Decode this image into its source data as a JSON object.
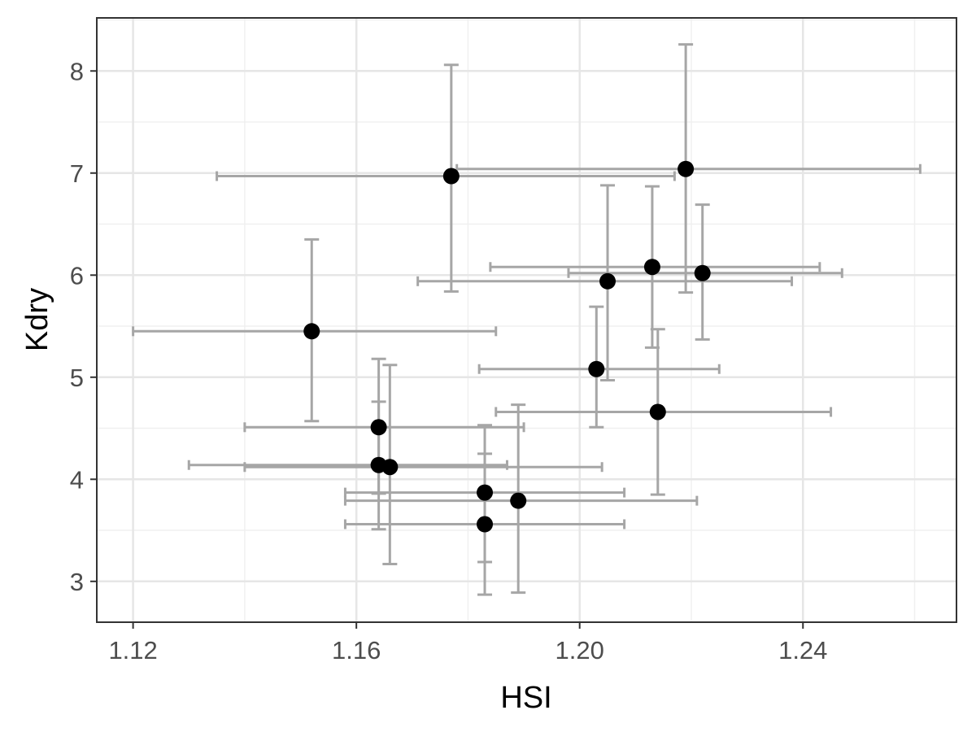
{
  "chart_data": {
    "type": "scatter",
    "title": "",
    "xlabel": "HSI",
    "ylabel": "Kdry",
    "xlim": [
      1.1135,
      1.2675
    ],
    "ylim": [
      2.6,
      8.52
    ],
    "x_ticks": [
      1.12,
      1.16,
      1.2,
      1.24
    ],
    "x_tick_labels": [
      "1.12",
      "1.16",
      "1.20",
      "1.24"
    ],
    "y_ticks": [
      3,
      4,
      5,
      6,
      7,
      8
    ],
    "y_tick_labels": [
      "3",
      "4",
      "5",
      "6",
      "7",
      "8"
    ],
    "grid": true,
    "legend": "none",
    "point_color": "#000000",
    "errorbar_color": "#a6a6a6",
    "points": [
      {
        "x": 1.152,
        "y": 5.45,
        "xmin": 1.12,
        "xmax": 1.185,
        "ymin": 4.57,
        "ymax": 6.35
      },
      {
        "x": 1.177,
        "y": 6.97,
        "xmin": 1.135,
        "xmax": 1.217,
        "ymin": 5.84,
        "ymax": 8.06
      },
      {
        "x": 1.219,
        "y": 7.04,
        "xmin": 1.178,
        "xmax": 1.261,
        "ymin": 5.83,
        "ymax": 8.26
      },
      {
        "x": 1.205,
        "y": 5.94,
        "xmin": 1.171,
        "xmax": 1.238,
        "ymin": 4.97,
        "ymax": 6.88
      },
      {
        "x": 1.213,
        "y": 6.08,
        "xmin": 1.184,
        "xmax": 1.243,
        "ymin": 5.29,
        "ymax": 6.87
      },
      {
        "x": 1.222,
        "y": 6.02,
        "xmin": 1.198,
        "xmax": 1.247,
        "ymin": 5.37,
        "ymax": 6.69
      },
      {
        "x": 1.203,
        "y": 5.08,
        "xmin": 1.182,
        "xmax": 1.225,
        "ymin": 4.51,
        "ymax": 5.69
      },
      {
        "x": 1.214,
        "y": 4.66,
        "xmin": 1.185,
        "xmax": 1.245,
        "ymin": 3.85,
        "ymax": 5.47
      },
      {
        "x": 1.164,
        "y": 4.51,
        "xmin": 1.14,
        "xmax": 1.19,
        "ymin": 3.86,
        "ymax": 5.18
      },
      {
        "x": 1.164,
        "y": 4.14,
        "xmin": 1.13,
        "xmax": 1.187,
        "ymin": 3.51,
        "ymax": 4.76
      },
      {
        "x": 1.166,
        "y": 4.12,
        "xmin": 1.14,
        "xmax": 1.204,
        "ymin": 3.17,
        "ymax": 5.12
      },
      {
        "x": 1.183,
        "y": 3.87,
        "xmin": 1.158,
        "xmax": 1.208,
        "ymin": 3.19,
        "ymax": 4.53
      },
      {
        "x": 1.189,
        "y": 3.79,
        "xmin": 1.158,
        "xmax": 1.221,
        "ymin": 2.89,
        "ymax": 4.73
      },
      {
        "x": 1.183,
        "y": 3.56,
        "xmin": 1.158,
        "xmax": 1.208,
        "ymin": 2.87,
        "ymax": 4.25
      }
    ]
  }
}
